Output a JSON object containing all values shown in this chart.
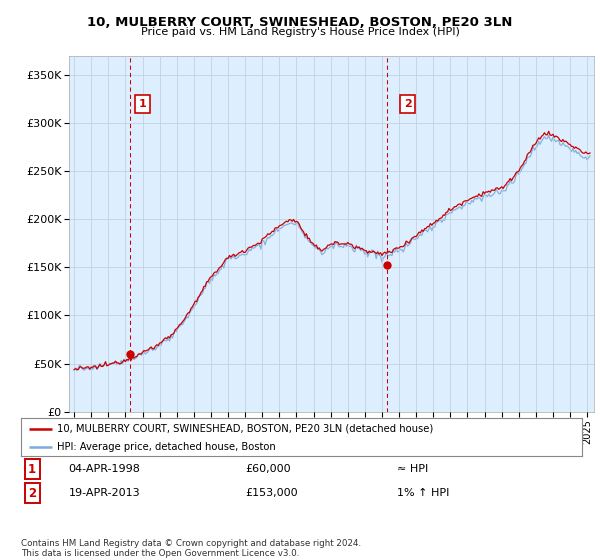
{
  "title": "10, MULBERRY COURT, SWINESHEAD, BOSTON, PE20 3LN",
  "subtitle": "Price paid vs. HM Land Registry's House Price Index (HPI)",
  "ylabel_ticks": [
    "£0",
    "£50K",
    "£100K",
    "£150K",
    "£200K",
    "£250K",
    "£300K",
    "£350K"
  ],
  "ytick_values": [
    0,
    50000,
    100000,
    150000,
    200000,
    250000,
    300000,
    350000
  ],
  "ylim": [
    0,
    370000
  ],
  "xlim_start": 1994.7,
  "xlim_end": 2025.4,
  "sale1_x": 1998.25,
  "sale1_y": 60000,
  "sale1_label": "1",
  "sale2_x": 2013.29,
  "sale2_y": 153000,
  "sale2_label": "2",
  "hpi_color": "#7aacdc",
  "price_color": "#cc0000",
  "dashed_vline_color": "#cc0000",
  "grid_color": "#cccccc",
  "bg_color": "#ddeeff",
  "plot_bg": "#ddeeff",
  "legend_line1": "10, MULBERRY COURT, SWINESHEAD, BOSTON, PE20 3LN (detached house)",
  "legend_line2": "HPI: Average price, detached house, Boston",
  "ann1_date": "04-APR-1998",
  "ann1_price": "£60,000",
  "ann1_hpi": "≈ HPI",
  "ann2_date": "19-APR-2013",
  "ann2_price": "£153,000",
  "ann2_hpi": "1% ↑ HPI",
  "footer": "Contains HM Land Registry data © Crown copyright and database right 2024.\nThis data is licensed under the Open Government Licence v3.0.",
  "hpi_base_points": [
    [
      1995.0,
      44000
    ],
    [
      1996.0,
      46000
    ],
    [
      1997.0,
      49000
    ],
    [
      1998.0,
      53000
    ],
    [
      1999.0,
      60000
    ],
    [
      2000.0,
      70000
    ],
    [
      2001.0,
      85000
    ],
    [
      2002.0,
      110000
    ],
    [
      2003.0,
      140000
    ],
    [
      2004.0,
      160000
    ],
    [
      2005.0,
      168000
    ],
    [
      2006.0,
      178000
    ],
    [
      2007.0,
      193000
    ],
    [
      2007.7,
      200000
    ],
    [
      2008.0,
      198000
    ],
    [
      2009.0,
      172000
    ],
    [
      2009.5,
      168000
    ],
    [
      2010.0,
      175000
    ],
    [
      2011.0,
      175000
    ],
    [
      2011.5,
      170000
    ],
    [
      2012.0,
      168000
    ],
    [
      2012.5,
      165000
    ],
    [
      2013.0,
      163000
    ],
    [
      2013.3,
      165000
    ],
    [
      2014.0,
      170000
    ],
    [
      2015.0,
      183000
    ],
    [
      2016.0,
      196000
    ],
    [
      2017.0,
      210000
    ],
    [
      2018.0,
      220000
    ],
    [
      2019.0,
      228000
    ],
    [
      2020.0,
      232000
    ],
    [
      2021.0,
      250000
    ],
    [
      2022.0,
      280000
    ],
    [
      2022.5,
      290000
    ],
    [
      2023.0,
      288000
    ],
    [
      2023.5,
      282000
    ],
    [
      2024.0,
      278000
    ],
    [
      2024.5,
      272000
    ],
    [
      2025.0,
      268000
    ]
  ]
}
